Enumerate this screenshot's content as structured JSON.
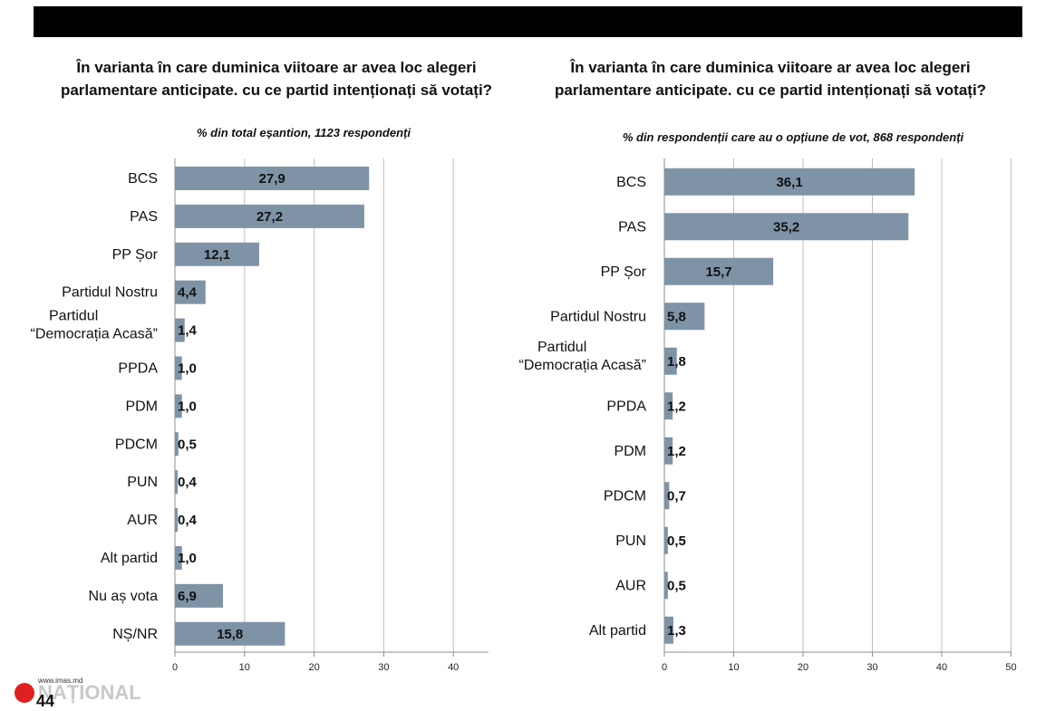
{
  "chart_data": [
    {
      "type": "bar",
      "orientation": "horizontal",
      "title_lines": [
        "În varianta în care duminica viitoare ar avea loc alegeri",
        "parlamentare anticipate. cu ce partid intenționați să votați?"
      ],
      "subtitle": "% din total eșantion, 1123 respondenți",
      "categories": [
        [
          "BCS"
        ],
        [
          "PAS"
        ],
        [
          "PP Șor"
        ],
        [
          "Partidul Nostru"
        ],
        [
          "Partidul",
          "“Democrația Acasă”"
        ],
        [
          "PPDA"
        ],
        [
          "PDM"
        ],
        [
          "PDCM"
        ],
        [
          "PUN"
        ],
        [
          "AUR"
        ],
        [
          "Alt partid"
        ],
        [
          "Nu aș vota"
        ],
        [
          "NȘ/NR"
        ]
      ],
      "values": [
        27.9,
        27.2,
        12.1,
        4.4,
        1.4,
        1.0,
        1.0,
        0.5,
        0.4,
        0.4,
        1.0,
        6.9,
        15.8
      ],
      "value_labels": [
        "27,9",
        "27,2",
        "12,1",
        "4,4",
        "1,4",
        "1,0",
        "1,0",
        "0,5",
        "0,4",
        "0,4",
        "1,0",
        "6,9",
        "15,8"
      ],
      "xlim": [
        0,
        45
      ],
      "xticks": [
        0,
        10,
        20,
        30,
        40
      ],
      "grid": true,
      "bar_color": "#7f93a7"
    },
    {
      "type": "bar",
      "orientation": "horizontal",
      "title_lines": [
        "În varianta în care duminica viitoare ar avea loc alegeri",
        "parlamentare anticipate. cu ce partid intenționați să votați?"
      ],
      "subtitle": "% din respondenții care au o opțiune de vot, 868 respondenți",
      "categories": [
        [
          "BCS"
        ],
        [
          "PAS"
        ],
        [
          "PP Șor"
        ],
        [
          "Partidul Nostru"
        ],
        [
          "Partidul",
          "“Democrația Acasă”"
        ],
        [
          "PPDA"
        ],
        [
          "PDM"
        ],
        [
          "PDCM"
        ],
        [
          "PUN"
        ],
        [
          "AUR"
        ],
        [
          "Alt partid"
        ]
      ],
      "values": [
        36.1,
        35.2,
        15.7,
        5.8,
        1.8,
        1.2,
        1.2,
        0.7,
        0.5,
        0.5,
        1.3
      ],
      "value_labels": [
        "36,1",
        "35,2",
        "15,7",
        "5,8",
        "1,8",
        "1,2",
        "1,2",
        "0,7",
        "0,5",
        "0,5",
        "1,3"
      ],
      "xlim": [
        0,
        50
      ],
      "xticks": [
        0,
        10,
        20,
        30,
        40,
        50
      ],
      "grid": true,
      "bar_color": "#7f93a7"
    }
  ],
  "watermark": {
    "url": "www.imas.md",
    "brand": "NAȚIONAL"
  },
  "page_number": "44"
}
